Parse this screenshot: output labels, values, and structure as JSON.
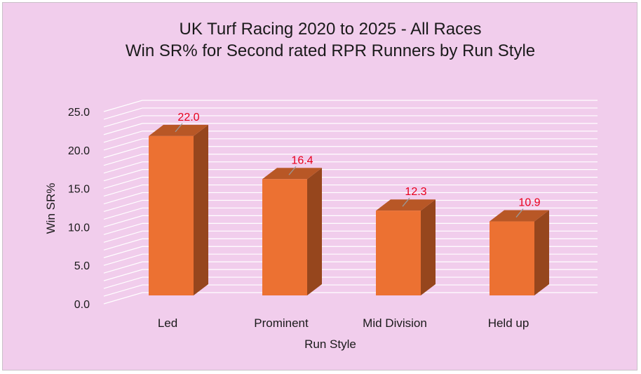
{
  "colors": {
    "background": "#f1cdec",
    "bar_front": "#ec7132",
    "bar_side": "#96461d",
    "bar_top": "#b85726",
    "data_label": "#e8001c",
    "gridline": "#ffffff"
  },
  "chart_data": {
    "type": "bar",
    "three_d": true,
    "title": "UK Turf Racing 2020 to 2025 - All Races",
    "subtitle": "Win SR% for Second rated RPR Runners by Run Style",
    "xlabel": "Run Style",
    "ylabel": "Win SR%",
    "categories": [
      "Led",
      "Prominent",
      "Mid Division",
      "Held up"
    ],
    "values": [
      22.0,
      16.4,
      12.3,
      10.9
    ],
    "data_labels": [
      "22.0",
      "16.4",
      "12.3",
      "10.9"
    ],
    "ylim": [
      0,
      25
    ],
    "yticks": [
      "0.0",
      "5.0",
      "10.0",
      "15.0",
      "20.0",
      "25.0"
    ],
    "grid": true,
    "legend": "none"
  }
}
